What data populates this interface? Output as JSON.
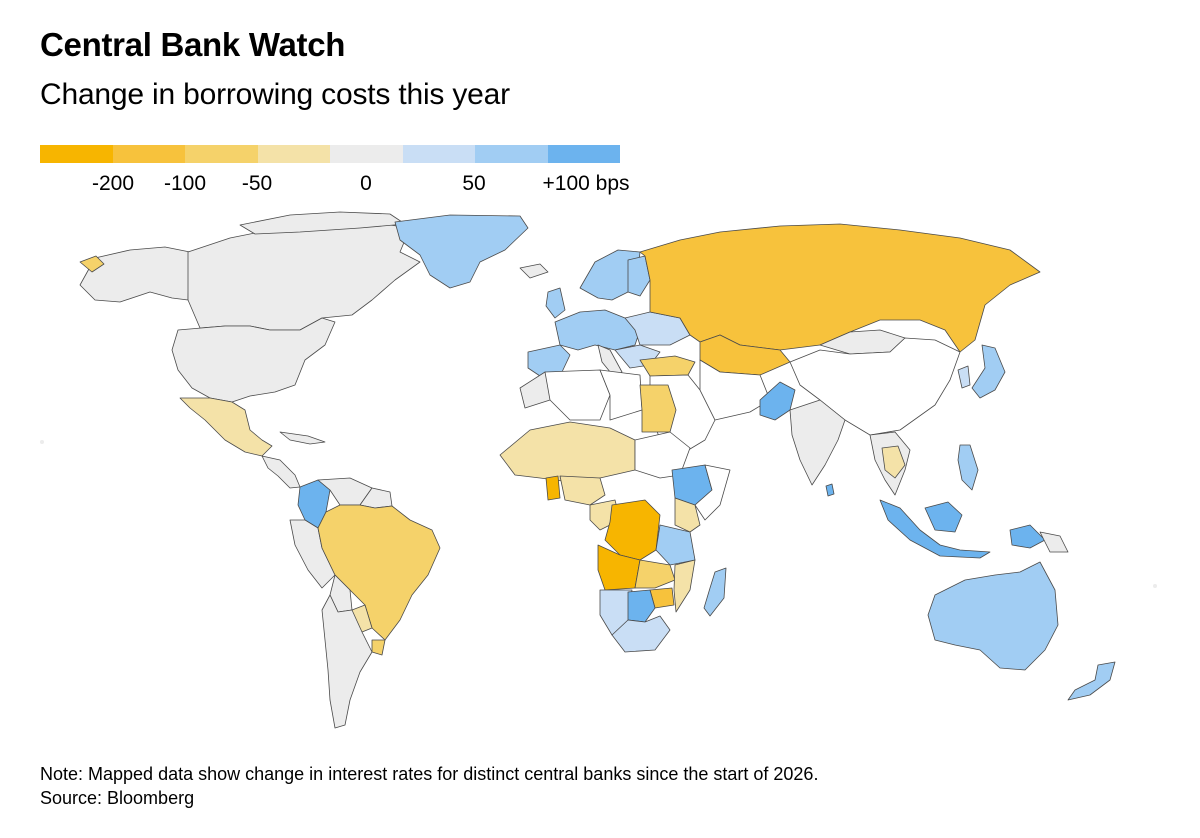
{
  "title": "Central Bank Watch",
  "subtitle": "Change in borrowing costs this year",
  "legend": {
    "colors": [
      "#f7b500",
      "#f7c23c",
      "#f5d26a",
      "#f4e2a8",
      "#ececec",
      "#c9def5",
      "#a1cdf3",
      "#6cb3ee"
    ],
    "labels": [
      "-200",
      "-100",
      "-50",
      "0",
      "50",
      "+100 bps"
    ]
  },
  "note": "Note: Mapped data show change in interest rates for distinct central banks since the start of 2026.",
  "source": "Source: Bloomberg",
  "map_fills": {
    "unchanged": "#ececec",
    "no_data": "#ffffff",
    "cut_large": "#f7b500",
    "cut_100": "#f7c23c",
    "cut_50": "#f5d26a",
    "cut_small": "#f4e2a8",
    "hike_small": "#c9def5",
    "hike_50": "#a1cdf3",
    "hike_100": "#6cb3ee"
  }
}
